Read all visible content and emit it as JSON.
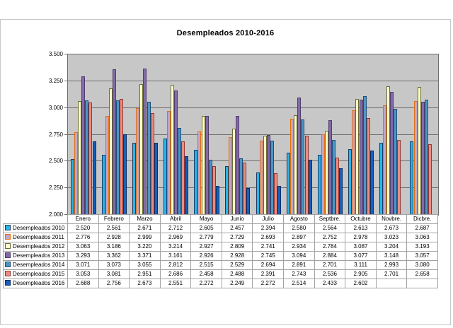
{
  "title": "Desempleados 2010-2016",
  "chart_data": {
    "type": "bar",
    "title": "Desempleados 2010-2016",
    "xlabel": "",
    "ylabel": "",
    "ylim": [
      2000,
      3500
    ],
    "ytick_step": 250,
    "ytick_labels": [
      "3.500",
      "3.250",
      "3.000",
      "2.750",
      "2.500",
      "2.250",
      "2.000"
    ],
    "grid": true,
    "plot_bg_color": "#c7c7c7",
    "legend_position": "data-table-left",
    "number_format": "thousands-dot",
    "categories": [
      "Enero",
      "Febrero",
      "Marzo",
      "Abril",
      "Mayo",
      "Junio",
      "Julio",
      "Agosto",
      "Septbre.",
      "Octubre",
      "Novbre.",
      "Dicbre."
    ],
    "series": [
      {
        "name": "Desempleados 2010",
        "fill": "#2ab4e8",
        "border": "#1a3c66",
        "values": [
          2520,
          2561,
          2671,
          2712,
          2605,
          2457,
          2394,
          2580,
          2564,
          2613,
          2673,
          2687
        ]
      },
      {
        "name": "Desempleados 2011",
        "fill": "#c2a4c6",
        "border": "#e2700f",
        "values": [
          2776,
          2928,
          2999,
          2969,
          2779,
          2729,
          2693,
          2897,
          2752,
          2978,
          3023,
          3063
        ]
      },
      {
        "name": "Desempleados 2012",
        "fill": "#ffffc9",
        "border": "#6b6b3a",
        "values": [
          3063,
          3186,
          3220,
          3214,
          2927,
          2809,
          2741,
          2934,
          2784,
          3087,
          3204,
          3193
        ]
      },
      {
        "name": "Desempleados 2013",
        "fill": "#8269a9",
        "border": "#4f3e69",
        "values": [
          3293,
          3362,
          3371,
          3161,
          2926,
          2928,
          2745,
          3094,
          2884,
          3077,
          3148,
          3057
        ]
      },
      {
        "name": "Desempleados 2014",
        "fill": "#4d96c3",
        "border": "#1f4e79",
        "values": [
          3071,
          3073,
          3055,
          2812,
          2515,
          2529,
          2694,
          2891,
          2701,
          3111,
          2993,
          3080
        ]
      },
      {
        "name": "Desempleados 2015",
        "fill": "#eb8c80",
        "border": "#943634",
        "values": [
          3053,
          3081,
          2951,
          2686,
          2458,
          2488,
          2391,
          2743,
          2536,
          2905,
          2701,
          2658
        ]
      },
      {
        "name": "Desempleados 2016",
        "fill": "#1461bd",
        "border": "#0a2e63",
        "values": [
          2688,
          2756,
          2673,
          2551,
          2272,
          2249,
          2272,
          2514,
          2433,
          2602,
          null,
          null
        ]
      }
    ]
  }
}
